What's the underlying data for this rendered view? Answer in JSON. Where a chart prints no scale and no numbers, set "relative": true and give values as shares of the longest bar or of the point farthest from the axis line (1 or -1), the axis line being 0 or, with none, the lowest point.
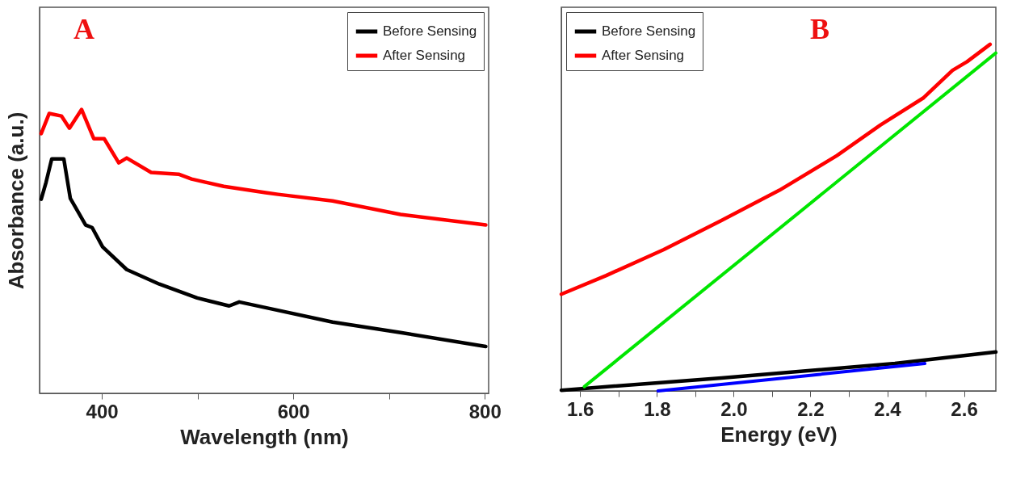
{
  "chart_data": [
    {
      "type": "line",
      "relative": true,
      "ylabel": "Absorbance (a.u.)",
      "xlabel": "Wavelength (nm)",
      "xlim": [
        335,
        804
      ],
      "xticks": [
        400,
        {
          "value": 500,
          "label": null
        },
        600,
        {
          "value": 700,
          "label": null
        },
        800
      ],
      "tick_labels": "x",
      "legend": "top right",
      "annotations": [
        "A"
      ],
      "series": [
        {
          "name": "Before Sensing",
          "color": "#000000",
          "x": [
            336.7,
            341.8,
            347.7,
            360.3,
            367.1,
            383.1,
            389.9,
            400.8,
            426,
            460,
            499.6,
            533,
            543.5,
            571,
            641,
            712,
            801
          ],
          "values": [
            0.684,
            0.744,
            0.826,
            0.826,
            0.687,
            0.593,
            0.584,
            0.516,
            0.436,
            0.385,
            0.336,
            0.308,
            0.322,
            0.302,
            0.251,
            0.214,
            0.165
          ]
        },
        {
          "name": "After Sensing",
          "color": "#ff0000",
          "x": [
            336.7,
            345.1,
            357.8,
            366.2,
            378.9,
            391.6,
            402.5,
            417.7,
            426,
            451.5,
            480.2,
            493.7,
            527.4,
            571,
            584,
            641,
            712,
            801
          ],
          "values": [
            0.915,
            0.986,
            0.977,
            0.934,
            1,
            0.897,
            0.897,
            0.812,
            0.829,
            0.778,
            0.772,
            0.755,
            0.729,
            0.707,
            0.701,
            0.678,
            0.63,
            0.593
          ]
        }
      ]
    },
    {
      "type": "line",
      "relative": true,
      "xlabel": "Energy (eV)",
      "xlim": [
        1.551,
        2.683
      ],
      "xticks": [
        1.6,
        {
          "value": 1.7,
          "label": null
        },
        1.8,
        {
          "value": 1.9,
          "label": null
        },
        {
          "value": 2,
          "label": "2.0"
        },
        {
          "value": 2.1,
          "label": null
        },
        2.2,
        {
          "value": 2.3,
          "label": null
        },
        2.4,
        {
          "value": 2.5,
          "label": null
        },
        2.6
      ],
      "tick_labels": "x",
      "legend": "top left",
      "annotations": [
        "B"
      ],
      "series": [
        {
          "name": "Before Sensing",
          "color": "#000000",
          "x": [
            1.551,
            1.968,
            2.42,
            2.683
          ],
          "values": [
            0.002,
            0.0375,
            0.079,
            0.1125
          ]
        },
        {
          "name": "After Sensing",
          "color": "#ff0000",
          "x": [
            1.551,
            1.668,
            1.818,
            1.968,
            2.119,
            2.269,
            2.382,
            2.495,
            2.57,
            2.608,
            2.668
          ],
          "values": [
            0.279,
            0.333,
            0.408,
            0.492,
            0.579,
            0.679,
            0.767,
            0.846,
            0.925,
            0.95,
            1
          ]
        },
        {
          "type": "line",
          "color": "#00e600",
          "x": [
            1.611,
            2.683
          ],
          "values": [
            0.0125,
            0.975
          ]
        },
        {
          "type": "line",
          "color": "#0000ff",
          "x": [
            1.803,
            2.498
          ],
          "values": [
            0,
            0.079
          ]
        }
      ]
    }
  ]
}
